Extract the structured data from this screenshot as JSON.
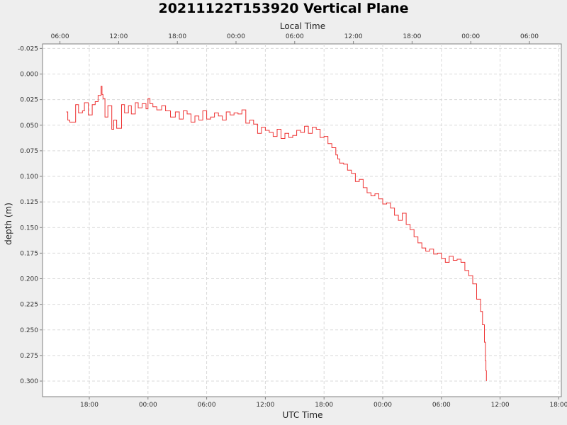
{
  "chart_data": {
    "type": "line",
    "title": "20211122T153920 Vertical Plane",
    "xlabel": "UTC Time",
    "x2label": "Local Time",
    "ylabel": "depth (m)",
    "y_inverted": true,
    "ylim": [
      -0.03,
      0.315
    ],
    "xlim_hours": [
      13.5,
      58.6
    ],
    "grid": true,
    "colors": {
      "series": "#ee3333",
      "background": "#eeeeee",
      "plot_background": "#ffffff"
    },
    "x_ticks_bottom": [
      {
        "hours": 18,
        "label": "18:00"
      },
      {
        "hours": 24,
        "label": "00:00"
      },
      {
        "hours": 30,
        "label": "06:00"
      },
      {
        "hours": 36,
        "label": "12:00"
      },
      {
        "hours": 42,
        "label": "18:00"
      },
      {
        "hours": 48,
        "label": "00:00"
      },
      {
        "hours": 54,
        "label": "06:00"
      },
      {
        "hours": 60,
        "label": "12:00"
      },
      {
        "hours": 66,
        "label": "18:00"
      }
    ],
    "x_ticks_top": [
      {
        "hours": 15,
        "label": "06:00"
      },
      {
        "hours": 21,
        "label": "12:00"
      },
      {
        "hours": 27,
        "label": "18:00"
      },
      {
        "hours": 33,
        "label": "00:00"
      },
      {
        "hours": 39,
        "label": "06:00"
      },
      {
        "hours": 45,
        "label": "12:00"
      },
      {
        "hours": 51,
        "label": "18:00"
      },
      {
        "hours": 57,
        "label": "00:00"
      },
      {
        "hours": 63,
        "label": "06:00"
      }
    ],
    "y_ticks": [
      {
        "value": -0.025,
        "label": "-0.025"
      },
      {
        "value": 0.0,
        "label": "0.000"
      },
      {
        "value": 0.025,
        "label": "0.025"
      },
      {
        "value": 0.05,
        "label": "0.050"
      },
      {
        "value": 0.075,
        "label": "0.075"
      },
      {
        "value": 0.1,
        "label": "0.100"
      },
      {
        "value": 0.125,
        "label": "0.125"
      },
      {
        "value": 0.15,
        "label": "0.150"
      },
      {
        "value": 0.175,
        "label": "0.175"
      },
      {
        "value": 0.2,
        "label": "0.200"
      },
      {
        "value": 0.225,
        "label": "0.225"
      },
      {
        "value": 0.25,
        "label": "0.250"
      },
      {
        "value": 0.275,
        "label": "0.275"
      },
      {
        "value": 0.3,
        "label": "0.300"
      }
    ],
    "series": [
      {
        "x": [
          15.65,
          15.8,
          16.0,
          16.6,
          16.9,
          17.3,
          17.5,
          17.9,
          18.3,
          18.6,
          18.9,
          19.2,
          19.3,
          19.4,
          19.6,
          19.9,
          20.3,
          20.5,
          20.8,
          21.3,
          21.6,
          22.0,
          22.3,
          22.7,
          23.0,
          23.4,
          23.8,
          24.0,
          24.2,
          24.5,
          24.9,
          25.4,
          25.8,
          26.3,
          26.8,
          27.2,
          27.6,
          28.0,
          28.4,
          28.8,
          29.2,
          29.6,
          30.0,
          30.4,
          30.8,
          31.2,
          31.6,
          32.0,
          32.4,
          32.8,
          33.2,
          33.6,
          34.0,
          34.4,
          34.8,
          35.2,
          35.6,
          36.0,
          36.4,
          36.8,
          37.2,
          37.6,
          38.0,
          38.4,
          38.8,
          39.2,
          39.6,
          40.0,
          40.4,
          40.8,
          41.2,
          41.6,
          42.0,
          42.4,
          42.8,
          43.2,
          43.4,
          43.6,
          44.0,
          44.4,
          44.8,
          45.2,
          45.6,
          46.0,
          46.4,
          46.8,
          47.2,
          47.6,
          48.0,
          48.4,
          48.8,
          49.2,
          49.6,
          50.0,
          50.4,
          50.8,
          51.2,
          51.6,
          52.0,
          52.4,
          52.8,
          53.2,
          53.6,
          54.0,
          54.4,
          54.8,
          55.2,
          55.6,
          56.0,
          56.4,
          56.8,
          57.2,
          57.6,
          58.0,
          58.2,
          58.4,
          58.5,
          58.55,
          58.6
        ],
        "y": [
          0.037,
          0.045,
          0.047,
          0.03,
          0.038,
          0.036,
          0.028,
          0.04,
          0.03,
          0.027,
          0.021,
          0.012,
          0.02,
          0.024,
          0.042,
          0.031,
          0.054,
          0.045,
          0.053,
          0.03,
          0.038,
          0.031,
          0.039,
          0.028,
          0.033,
          0.029,
          0.034,
          0.024,
          0.029,
          0.032,
          0.035,
          0.031,
          0.036,
          0.042,
          0.037,
          0.044,
          0.036,
          0.039,
          0.047,
          0.041,
          0.045,
          0.036,
          0.044,
          0.042,
          0.038,
          0.041,
          0.045,
          0.037,
          0.04,
          0.038,
          0.039,
          0.035,
          0.048,
          0.045,
          0.049,
          0.058,
          0.052,
          0.055,
          0.057,
          0.061,
          0.054,
          0.063,
          0.058,
          0.062,
          0.06,
          0.055,
          0.057,
          0.051,
          0.058,
          0.052,
          0.054,
          0.062,
          0.061,
          0.068,
          0.072,
          0.079,
          0.083,
          0.087,
          0.088,
          0.094,
          0.097,
          0.105,
          0.103,
          0.111,
          0.116,
          0.119,
          0.117,
          0.122,
          0.127,
          0.126,
          0.131,
          0.138,
          0.143,
          0.136,
          0.147,
          0.152,
          0.159,
          0.165,
          0.17,
          0.173,
          0.171,
          0.176,
          0.175,
          0.18,
          0.184,
          0.178,
          0.182,
          0.181,
          0.184,
          0.192,
          0.197,
          0.205,
          0.22,
          0.232,
          0.245,
          0.262,
          0.28,
          0.29,
          0.3
        ]
      }
    ]
  }
}
